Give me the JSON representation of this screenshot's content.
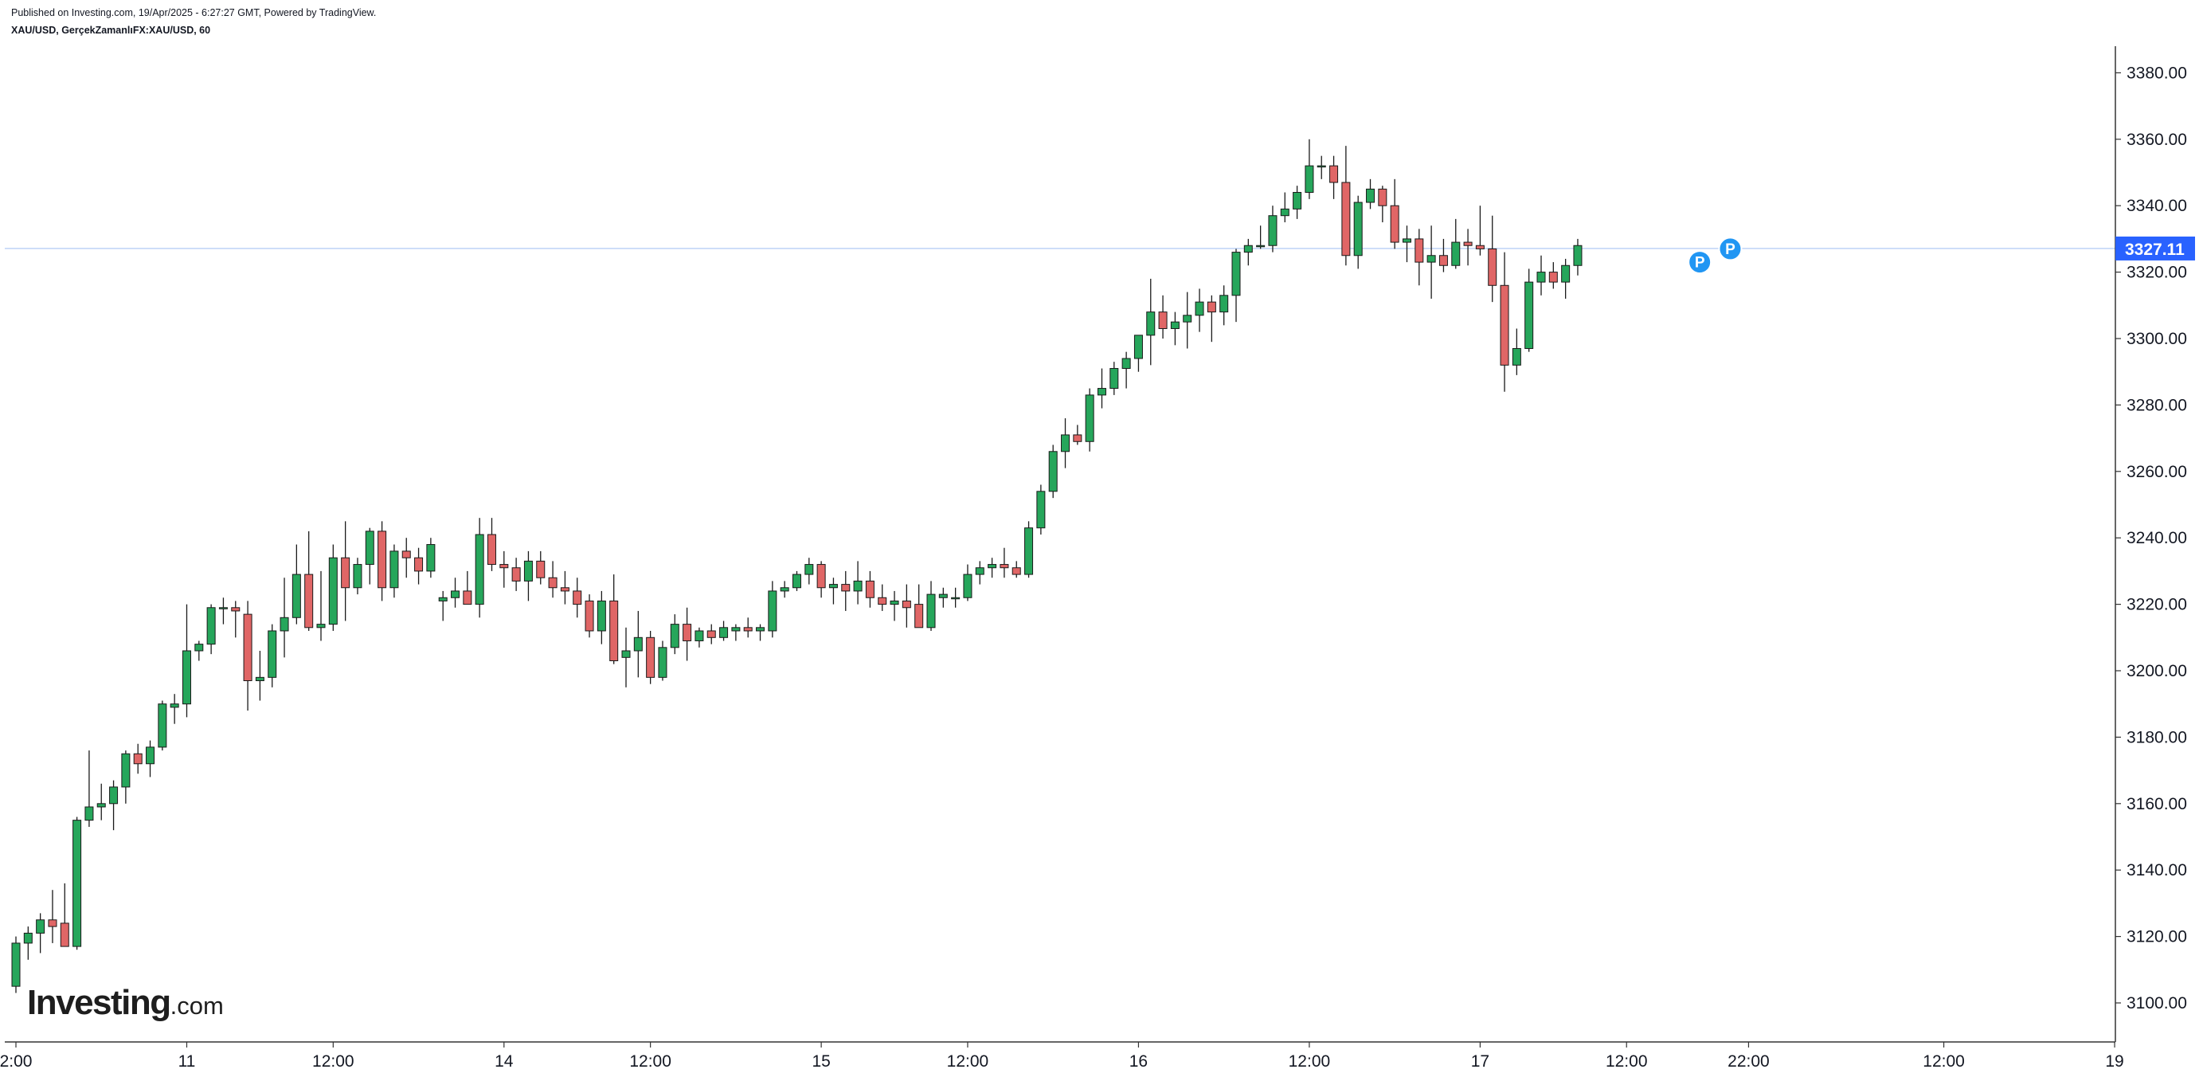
{
  "header": {
    "published": "Published on Investing.com, 19/Apr/2025 - 6:27:27 GMT, Powered by TradingView.",
    "symbol": "XAU/USD, GerçekZamanlıFX:XAU/USD, 60"
  },
  "logo": {
    "main": "Investing",
    "suffix": ".com"
  },
  "colors": {
    "up": "#26a65b",
    "down": "#e06666",
    "wick": "#1a1a1a",
    "price_line": "#a8c4f4",
    "price_badge": "#2962ff",
    "marker": "#2196f3",
    "axis": "#333333"
  },
  "chart_data": {
    "type": "candlestick",
    "interval": "60",
    "ylim": [
      3088,
      3390
    ],
    "y_ticks": [
      3100,
      3120,
      3140,
      3160,
      3180,
      3200,
      3220,
      3240,
      3260,
      3280,
      3300,
      3320,
      3340,
      3360,
      3380
    ],
    "y_tick_labels": [
      "3100.00",
      "3120.00",
      "3140.00",
      "3160.00",
      "3180.00",
      "3200.00",
      "3220.00",
      "3240.00",
      "3260.00",
      "3280.00",
      "3300.00",
      "3320.00",
      "3340.00",
      "3360.00",
      "3380.00"
    ],
    "x_ticks": [
      {
        "label": "2:00",
        "bar": 0
      },
      {
        "label": "11",
        "bar": 14
      },
      {
        "label": "12:00",
        "bar": 26
      },
      {
        "label": "14",
        "bar": 40
      },
      {
        "label": "12:00",
        "bar": 52
      },
      {
        "label": "15",
        "bar": 66
      },
      {
        "label": "12:00",
        "bar": 78
      },
      {
        "label": "16",
        "bar": 92
      },
      {
        "label": "12:00",
        "bar": 106
      },
      {
        "label": "17",
        "bar": 120
      },
      {
        "label": "12:00",
        "bar": 132
      },
      {
        "label": "22:00",
        "bar": 142
      },
      {
        "label": "12:00",
        "bar": 158
      },
      {
        "label": "19",
        "bar": 172
      }
    ],
    "last_price": 3327.11,
    "last_price_label": "3327.11",
    "markers": [
      {
        "label": "P",
        "bar": 138,
        "price": 3323
      },
      {
        "label": "P",
        "bar": 140.5,
        "price": 3327
      }
    ],
    "ohlc": [
      [
        3105,
        3120,
        3103,
        3118
      ],
      [
        3118,
        3123,
        3113,
        3121
      ],
      [
        3121,
        3127,
        3115,
        3125
      ],
      [
        3125,
        3134,
        3118,
        3123
      ],
      [
        3124,
        3136,
        3117,
        3117
      ],
      [
        3117,
        3156,
        3116,
        3155
      ],
      [
        3155,
        3176,
        3153,
        3159
      ],
      [
        3159,
        3166,
        3155,
        3160
      ],
      [
        3160,
        3167,
        3152,
        3165
      ],
      [
        3165,
        3176,
        3160,
        3175
      ],
      [
        3175,
        3178,
        3169,
        3172
      ],
      [
        3172,
        3179,
        3168,
        3177
      ],
      [
        3177,
        3191,
        3176,
        3190
      ],
      [
        3189,
        3193,
        3184,
        3190
      ],
      [
        3190,
        3220,
        3186,
        3206
      ],
      [
        3206,
        3209,
        3203,
        3208
      ],
      [
        3208,
        3220,
        3205,
        3219
      ],
      [
        3219,
        3222,
        3214,
        3219
      ],
      [
        3219,
        3221,
        3210,
        3218
      ],
      [
        3217,
        3221,
        3188,
        3197
      ],
      [
        3197,
        3206,
        3191,
        3198
      ],
      [
        3198,
        3214,
        3195,
        3212
      ],
      [
        3212,
        3228,
        3204,
        3216
      ],
      [
        3216,
        3238,
        3214,
        3229
      ],
      [
        3229,
        3242,
        3212,
        3213
      ],
      [
        3213,
        3230,
        3209,
        3214
      ],
      [
        3214,
        3238,
        3212,
        3234
      ],
      [
        3234,
        3245,
        3215,
        3225
      ],
      [
        3225,
        3234,
        3223,
        3232
      ],
      [
        3232,
        3243,
        3226,
        3242
      ],
      [
        3242,
        3245,
        3221,
        3225
      ],
      [
        3225,
        3238,
        3222,
        3236
      ],
      [
        3236,
        3240,
        3228,
        3234
      ],
      [
        3234,
        3237,
        3226,
        3230
      ],
      [
        3230,
        3240,
        3228,
        3238
      ],
      [
        3221,
        3224,
        3215,
        3222
      ],
      [
        3222,
        3228,
        3219,
        3224
      ],
      [
        3224,
        3230,
        3220,
        3220
      ],
      [
        3220,
        3246,
        3216,
        3241
      ],
      [
        3241,
        3246,
        3230,
        3232
      ],
      [
        3232,
        3236,
        3225,
        3231
      ],
      [
        3231,
        3234,
        3224,
        3227
      ],
      [
        3227,
        3236,
        3221,
        3233
      ],
      [
        3233,
        3236,
        3226,
        3228
      ],
      [
        3228,
        3233,
        3222,
        3225
      ],
      [
        3225,
        3230,
        3220,
        3224
      ],
      [
        3224,
        3228,
        3216,
        3220
      ],
      [
        3221,
        3223,
        3210,
        3212
      ],
      [
        3212,
        3224,
        3208,
        3221
      ],
      [
        3221,
        3229,
        3202,
        3203
      ],
      [
        3204,
        3213,
        3195,
        3206
      ],
      [
        3206,
        3218,
        3198,
        3210
      ],
      [
        3210,
        3212,
        3196,
        3198
      ],
      [
        3198,
        3209,
        3197,
        3207
      ],
      [
        3207,
        3217,
        3205,
        3214
      ],
      [
        3214,
        3219,
        3203,
        3209
      ],
      [
        3209,
        3213,
        3207,
        3212
      ],
      [
        3212,
        3214,
        3208,
        3210
      ],
      [
        3210,
        3215,
        3209,
        3213
      ],
      [
        3212,
        3214,
        3209,
        3213
      ],
      [
        3213,
        3216,
        3210,
        3212
      ],
      [
        3212,
        3214,
        3209,
        3213
      ],
      [
        3212,
        3227,
        3210,
        3224
      ],
      [
        3224,
        3227,
        3222,
        3225
      ],
      [
        3225,
        3230,
        3224,
        3229
      ],
      [
        3229,
        3234,
        3226,
        3232
      ],
      [
        3232,
        3233,
        3222,
        3225
      ],
      [
        3225,
        3228,
        3220,
        3226
      ],
      [
        3226,
        3230,
        3218,
        3224
      ],
      [
        3224,
        3233,
        3220,
        3227
      ],
      [
        3227,
        3230,
        3219,
        3222
      ],
      [
        3222,
        3226,
        3218,
        3220
      ],
      [
        3220,
        3224,
        3215,
        3221
      ],
      [
        3221,
        3226,
        3213,
        3219
      ],
      [
        3220,
        3226,
        3213,
        3213
      ],
      [
        3213,
        3227,
        3212,
        3223
      ],
      [
        3222,
        3225,
        3219,
        3223
      ],
      [
        3222,
        3225,
        3219,
        3222
      ],
      [
        3222,
        3232,
        3221,
        3229
      ],
      [
        3229,
        3233,
        3226,
        3231
      ],
      [
        3231,
        3234,
        3228,
        3232
      ],
      [
        3232,
        3237,
        3228,
        3231
      ],
      [
        3231,
        3233,
        3228,
        3229
      ],
      [
        3229,
        3245,
        3228,
        3243
      ],
      [
        3243,
        3256,
        3241,
        3254
      ],
      [
        3254,
        3268,
        3252,
        3266
      ],
      [
        3266,
        3276,
        3261,
        3271
      ],
      [
        3271,
        3274,
        3268,
        3269
      ],
      [
        3269,
        3285,
        3266,
        3283
      ],
      [
        3283,
        3291,
        3279,
        3285
      ],
      [
        3285,
        3293,
        3283,
        3291
      ],
      [
        3291,
        3296,
        3285,
        3294
      ],
      [
        3294,
        3301,
        3290,
        3301
      ],
      [
        3301,
        3318,
        3292,
        3308
      ],
      [
        3308,
        3313,
        3300,
        3303
      ],
      [
        3303,
        3308,
        3298,
        3305
      ],
      [
        3305,
        3314,
        3297,
        3307
      ],
      [
        3307,
        3315,
        3302,
        3311
      ],
      [
        3311,
        3313,
        3299,
        3308
      ],
      [
        3308,
        3316,
        3304,
        3313
      ],
      [
        3313,
        3327,
        3305,
        3326
      ],
      [
        3326,
        3330,
        3322,
        3328
      ],
      [
        3328,
        3334,
        3327,
        3328
      ],
      [
        3328,
        3340,
        3326,
        3337
      ],
      [
        3337,
        3344,
        3335,
        3339
      ],
      [
        3339,
        3346,
        3336,
        3344
      ],
      [
        3344,
        3360,
        3342,
        3352
      ],
      [
        3352,
        3355,
        3348,
        3352
      ],
      [
        3352,
        3355,
        3342,
        3347
      ],
      [
        3347,
        3358,
        3322,
        3325
      ],
      [
        3325,
        3343,
        3321,
        3341
      ],
      [
        3341,
        3348,
        3339,
        3345
      ],
      [
        3345,
        3346,
        3335,
        3340
      ],
      [
        3340,
        3348,
        3327,
        3329
      ],
      [
        3329,
        3334,
        3323,
        3330
      ],
      [
        3330,
        3333,
        3316,
        3323
      ],
      [
        3323,
        3334,
        3312,
        3325
      ],
      [
        3325,
        3330,
        3320,
        3322
      ],
      [
        3322,
        3336,
        3321,
        3329
      ],
      [
        3329,
        3333,
        3322,
        3328
      ],
      [
        3328,
        3340,
        3325,
        3327
      ],
      [
        3327,
        3337,
        3311,
        3316
      ],
      [
        3316,
        3326,
        3284,
        3292
      ],
      [
        3292,
        3303,
        3289,
        3297
      ],
      [
        3297,
        3321,
        3296,
        3317
      ],
      [
        3317,
        3325,
        3313,
        3320
      ],
      [
        3320,
        3323,
        3315,
        3317
      ],
      [
        3317,
        3324,
        3312,
        3322
      ],
      [
        3322,
        3330,
        3319,
        3328
      ]
    ]
  }
}
